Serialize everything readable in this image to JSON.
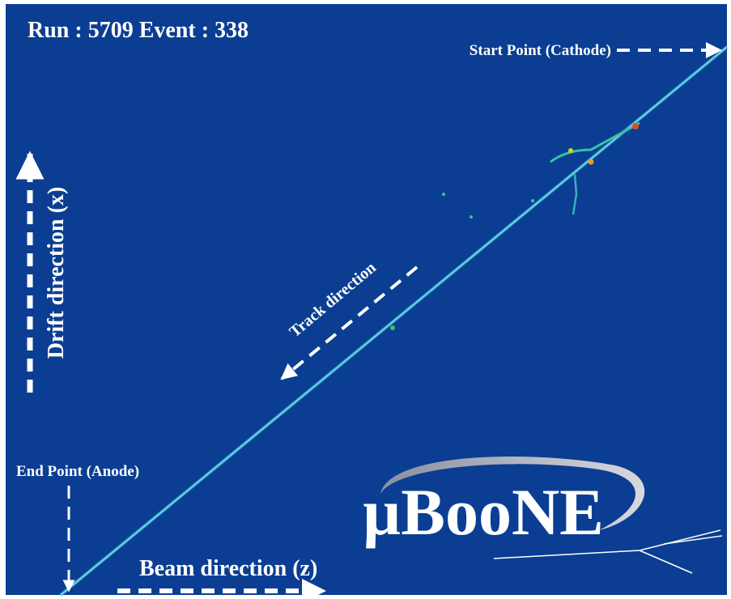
{
  "event_display": {
    "run_label": "Run : 5709 Event : 338",
    "start_label": "Start Point (Cathode)",
    "end_label": "End Point (Anode)",
    "track_label": "Track direction",
    "drift_label": "Drift direction (x)",
    "beam_label": "Beam direction (z)",
    "logo": "µBooNE"
  }
}
